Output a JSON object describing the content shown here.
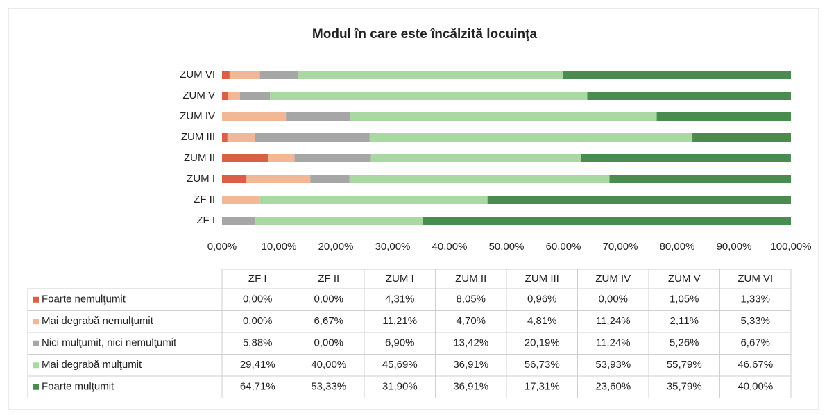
{
  "chart_data": {
    "type": "stacked-barh",
    "title": "Modul în care este încălzită locuinţa",
    "categories": [
      "ZF I",
      "ZF II",
      "ZUM I",
      "ZUM II",
      "ZUM III",
      "ZUM IV",
      "ZUM V",
      "ZUM VI"
    ],
    "series": [
      {
        "name": "Foarte nemulţumit",
        "color": "#d95f45",
        "values": [
          0,
          0,
          4.31,
          8.05,
          0.96,
          0,
          1.05,
          1.33
        ],
        "value_labels": [
          "0,00%",
          "0,00%",
          "4,31%",
          "8,05%",
          "0,96%",
          "0,00%",
          "1,05%",
          "1,33%"
        ]
      },
      {
        "name": "Mai degrabă nemulţumit",
        "color": "#f2b896",
        "values": [
          0,
          6.67,
          11.21,
          4.7,
          4.81,
          11.24,
          2.11,
          5.33
        ],
        "value_labels": [
          "0,00%",
          "6,67%",
          "11,21%",
          "4,70%",
          "4,81%",
          "11,24%",
          "2,11%",
          "5,33%"
        ]
      },
      {
        "name": "Nici mulţumit, nici nemulţumit",
        "color": "#a6a6a6",
        "values": [
          5.88,
          0,
          6.9,
          13.42,
          20.19,
          11.24,
          5.26,
          6.67
        ],
        "value_labels": [
          "5,88%",
          "0,00%",
          "6,90%",
          "13,42%",
          "20,19%",
          "11,24%",
          "5,26%",
          "6,67%"
        ]
      },
      {
        "name": "Mai degrabă mulţumit",
        "color": "#a9d8a3",
        "values": [
          29.41,
          40,
          45.69,
          36.91,
          56.73,
          53.93,
          55.79,
          46.67
        ],
        "value_labels": [
          "29,41%",
          "40,00%",
          "45,69%",
          "36,91%",
          "56,73%",
          "53,93%",
          "55,79%",
          "46,67%"
        ]
      },
      {
        "name": "Foarte mulţumit",
        "color": "#4a8c4f",
        "values": [
          64.71,
          53.33,
          31.9,
          36.91,
          17.31,
          23.6,
          35.79,
          40
        ],
        "value_labels": [
          "64,71%",
          "53,33%",
          "31,90%",
          "36,91%",
          "17,31%",
          "23,60%",
          "35,79%",
          "40,00%"
        ]
      }
    ],
    "xlim": [
      0,
      100
    ],
    "xticks": [
      {
        "value": 0,
        "label": "0,00%"
      },
      {
        "value": 10,
        "label": "10,00%"
      },
      {
        "value": 20,
        "label": "20,00%"
      },
      {
        "value": 30,
        "label": "30,00%"
      },
      {
        "value": 40,
        "label": "40,00%"
      },
      {
        "value": 50,
        "label": "50,00%"
      },
      {
        "value": 60,
        "label": "60,00%"
      },
      {
        "value": 70,
        "label": "70,00%"
      },
      {
        "value": 80,
        "label": "80,00%"
      },
      {
        "value": 90,
        "label": "90,00%"
      },
      {
        "value": 100,
        "label": "100,00%"
      }
    ],
    "grid": false
  }
}
